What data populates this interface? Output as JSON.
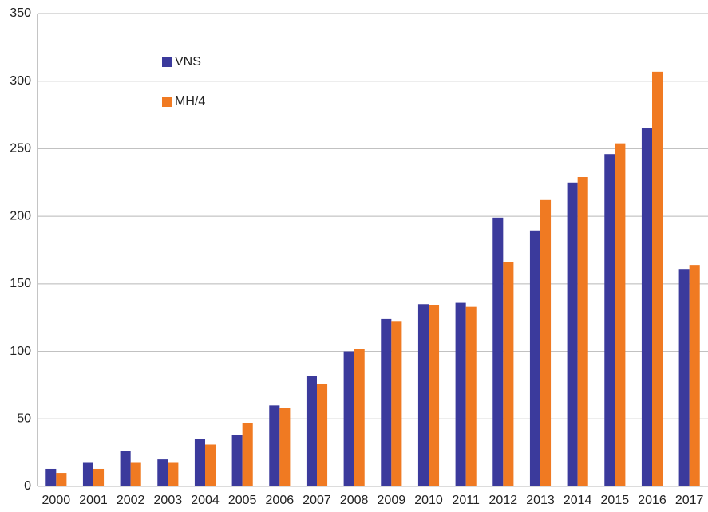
{
  "chart_data": {
    "type": "bar",
    "categories": [
      "2000",
      "2001",
      "2002",
      "2003",
      "2004",
      "2005",
      "2006",
      "2007",
      "2008",
      "2009",
      "2010",
      "2011",
      "2012",
      "2013",
      "2014",
      "2015",
      "2016",
      "2017"
    ],
    "series": [
      {
        "name": "VNS",
        "color": "#3b3a9c",
        "values": [
          13,
          18,
          26,
          20,
          35,
          38,
          60,
          82,
          100,
          124,
          135,
          136,
          199,
          189,
          225,
          246,
          265,
          161
        ]
      },
      {
        "name": "MH/4",
        "color": "#f07a22",
        "values": [
          10,
          13,
          18,
          18,
          31,
          47,
          58,
          76,
          102,
          122,
          134,
          133,
          166,
          212,
          229,
          254,
          307,
          164
        ]
      }
    ],
    "ylim": [
      0,
      350
    ],
    "yticks": [
      0,
      50,
      100,
      150,
      200,
      250,
      300,
      350
    ],
    "grid": true,
    "legend": "top-left"
  }
}
